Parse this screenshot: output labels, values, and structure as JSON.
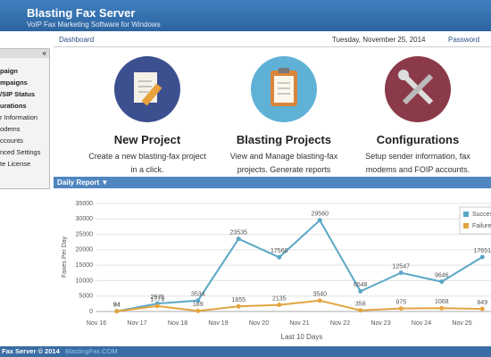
{
  "header": {
    "title": "Blasting Fax Server",
    "subtitle": "VoIP Fax Marketing Software for Windows"
  },
  "toolbar": {
    "dashboard": "Dashboard",
    "date": "Tuesday, November 25, 2014",
    "password": "Password"
  },
  "sidebar": {
    "items": [
      "paign",
      "mpaigns",
      "/SIP Status",
      "urations",
      "r Information",
      "odems",
      "ccounts",
      "nced Settings",
      "te License"
    ]
  },
  "cards": [
    {
      "title": "New Project",
      "description": "Create a new blasting-fax project in a click."
    },
    {
      "title": "Blasting Projects",
      "description": "View and Manage blasting-fax projects. Generate reports"
    },
    {
      "title": "Configurations",
      "description": "Setup sender information, fax modems and FOIP accounts."
    }
  ],
  "chart_data": {
    "type": "line",
    "title": "Daily Report",
    "y_label": "Faxes Per Day",
    "x_label": "Last 10 Days",
    "categories": [
      "Nov 16",
      "Nov 17",
      "Nov 18",
      "Nov 19",
      "Nov 20",
      "Nov 21",
      "Nov 22",
      "Nov 23",
      "Nov 24",
      "Nov 25"
    ],
    "series": [
      {
        "name": "Success",
        "color": "#5aa7c6",
        "values": [
          94,
          2575,
          3534,
          23535,
          17560,
          29560,
          6548,
          12547,
          9646,
          17651
        ]
      },
      {
        "name": "Failure",
        "color": "#e3a440",
        "values": [
          84,
          1779,
          189,
          1655,
          2135,
          3540,
          358,
          975,
          1068,
          849
        ]
      }
    ],
    "ylim": [
      0,
      35000
    ],
    "yticks": [
      0,
      5000,
      10000,
      15000,
      20000,
      25000,
      30000,
      35000
    ],
    "grid": true,
    "legend": "right"
  },
  "footer": {
    "copyright": "Fax Server © 2014",
    "link": "BlastingFax.COM"
  }
}
